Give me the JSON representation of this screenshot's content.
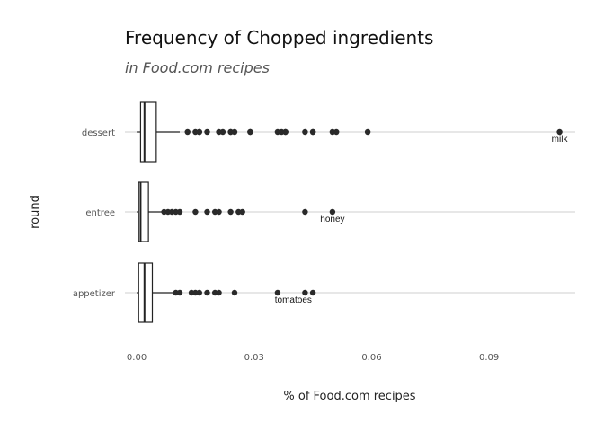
{
  "chart_data": {
    "type": "boxplot",
    "orientation": "horizontal",
    "title": "Frequency of Chopped ingredients",
    "subtitle": "in Food.com recipes",
    "xlabel": "% of Food.com recipes",
    "ylabel": "round",
    "xlim": [
      -0.003,
      0.112
    ],
    "x_ticks": [
      0.0,
      0.03,
      0.06,
      0.09
    ],
    "x_tick_labels": [
      "0.00",
      "0.03",
      "0.06",
      "0.09"
    ],
    "grid": "horizontal lines at categories",
    "legend": "none",
    "categories": [
      "dessert",
      "entree",
      "appetizer"
    ],
    "boxes": [
      {
        "category": "dessert",
        "whisker_low": 0.0,
        "q1": 0.001,
        "median": 0.002,
        "q3": 0.005,
        "whisker_high": 0.011,
        "outliers": [
          0.013,
          0.015,
          0.016,
          0.016,
          0.018,
          0.021,
          0.022,
          0.024,
          0.024,
          0.025,
          0.029,
          0.029,
          0.036,
          0.037,
          0.038,
          0.038,
          0.043,
          0.045,
          0.045,
          0.05,
          0.051,
          0.059,
          0.108
        ]
      },
      {
        "category": "entree",
        "whisker_low": 0.0,
        "q1": 0.0005,
        "median": 0.001,
        "q3": 0.003,
        "whisker_high": 0.007,
        "outliers": [
          0.007,
          0.008,
          0.009,
          0.01,
          0.011,
          0.015,
          0.018,
          0.02,
          0.021,
          0.024,
          0.026,
          0.027,
          0.043,
          0.05
        ]
      },
      {
        "category": "appetizer",
        "whisker_low": 0.0,
        "q1": 0.0005,
        "median": 0.002,
        "q3": 0.004,
        "whisker_high": 0.01,
        "outliers": [
          0.01,
          0.011,
          0.014,
          0.015,
          0.016,
          0.018,
          0.02,
          0.021,
          0.025,
          0.036,
          0.043,
          0.045
        ]
      }
    ],
    "annotations": [
      {
        "text": "milk",
        "category": "dessert",
        "x": 0.108
      },
      {
        "text": "honey",
        "category": "entree",
        "x": 0.05
      },
      {
        "text": "tomatoes",
        "category": "appetizer",
        "x": 0.04
      }
    ]
  }
}
